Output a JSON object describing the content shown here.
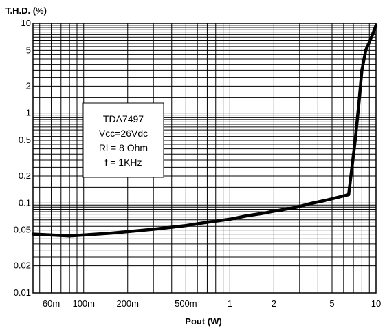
{
  "chart_data": {
    "type": "line",
    "ylabel": "T.H.D. (%)",
    "xlabel": "Pout (W)",
    "x_scale": "log",
    "y_scale": "log",
    "xlim": [
      0.045,
      10
    ],
    "ylim": [
      0.01,
      10
    ],
    "grid": true,
    "x_ticks": [
      {
        "value": 0.06,
        "label": "60m"
      },
      {
        "value": 0.1,
        "label": "100m"
      },
      {
        "value": 0.2,
        "label": "200m"
      },
      {
        "value": 0.5,
        "label": "500m"
      },
      {
        "value": 1,
        "label": "1"
      },
      {
        "value": 2,
        "label": "2"
      },
      {
        "value": 5,
        "label": "5"
      },
      {
        "value": 10,
        "label": "10"
      }
    ],
    "y_ticks": [
      {
        "value": 10,
        "label": "10"
      },
      {
        "value": 5,
        "label": "5"
      },
      {
        "value": 2,
        "label": "2"
      },
      {
        "value": 1,
        "label": "1"
      },
      {
        "value": 0.5,
        "label": "0.5"
      },
      {
        "value": 0.2,
        "label": "0.2"
      },
      {
        "value": 0.1,
        "label": "0.1"
      },
      {
        "value": 0.05,
        "label": "0.05"
      },
      {
        "value": 0.02,
        "label": "0.02"
      },
      {
        "value": 0.01,
        "label": "0.01"
      }
    ],
    "annotation": [
      "TDA7497",
      "Vcc=26Vdc",
      "Rl = 8 Ohm",
      "f = 1KHz"
    ],
    "series": [
      {
        "x": [
          0.045,
          0.06,
          0.08,
          0.1,
          0.15,
          0.2,
          0.3,
          0.5,
          0.7,
          1.0,
          1.3,
          1.7,
          2.0,
          2.8,
          3.5,
          4.5,
          5.5,
          6.5,
          7.2,
          7.6,
          8.0,
          8.5,
          9.3,
          10.0
        ],
        "y": [
          0.045,
          0.044,
          0.043,
          0.044,
          0.046,
          0.048,
          0.051,
          0.056,
          0.061,
          0.066,
          0.072,
          0.077,
          0.081,
          0.089,
          0.098,
          0.107,
          0.116,
          0.124,
          0.5,
          1.2,
          3.0,
          5.0,
          7.0,
          9.5
        ]
      }
    ]
  }
}
